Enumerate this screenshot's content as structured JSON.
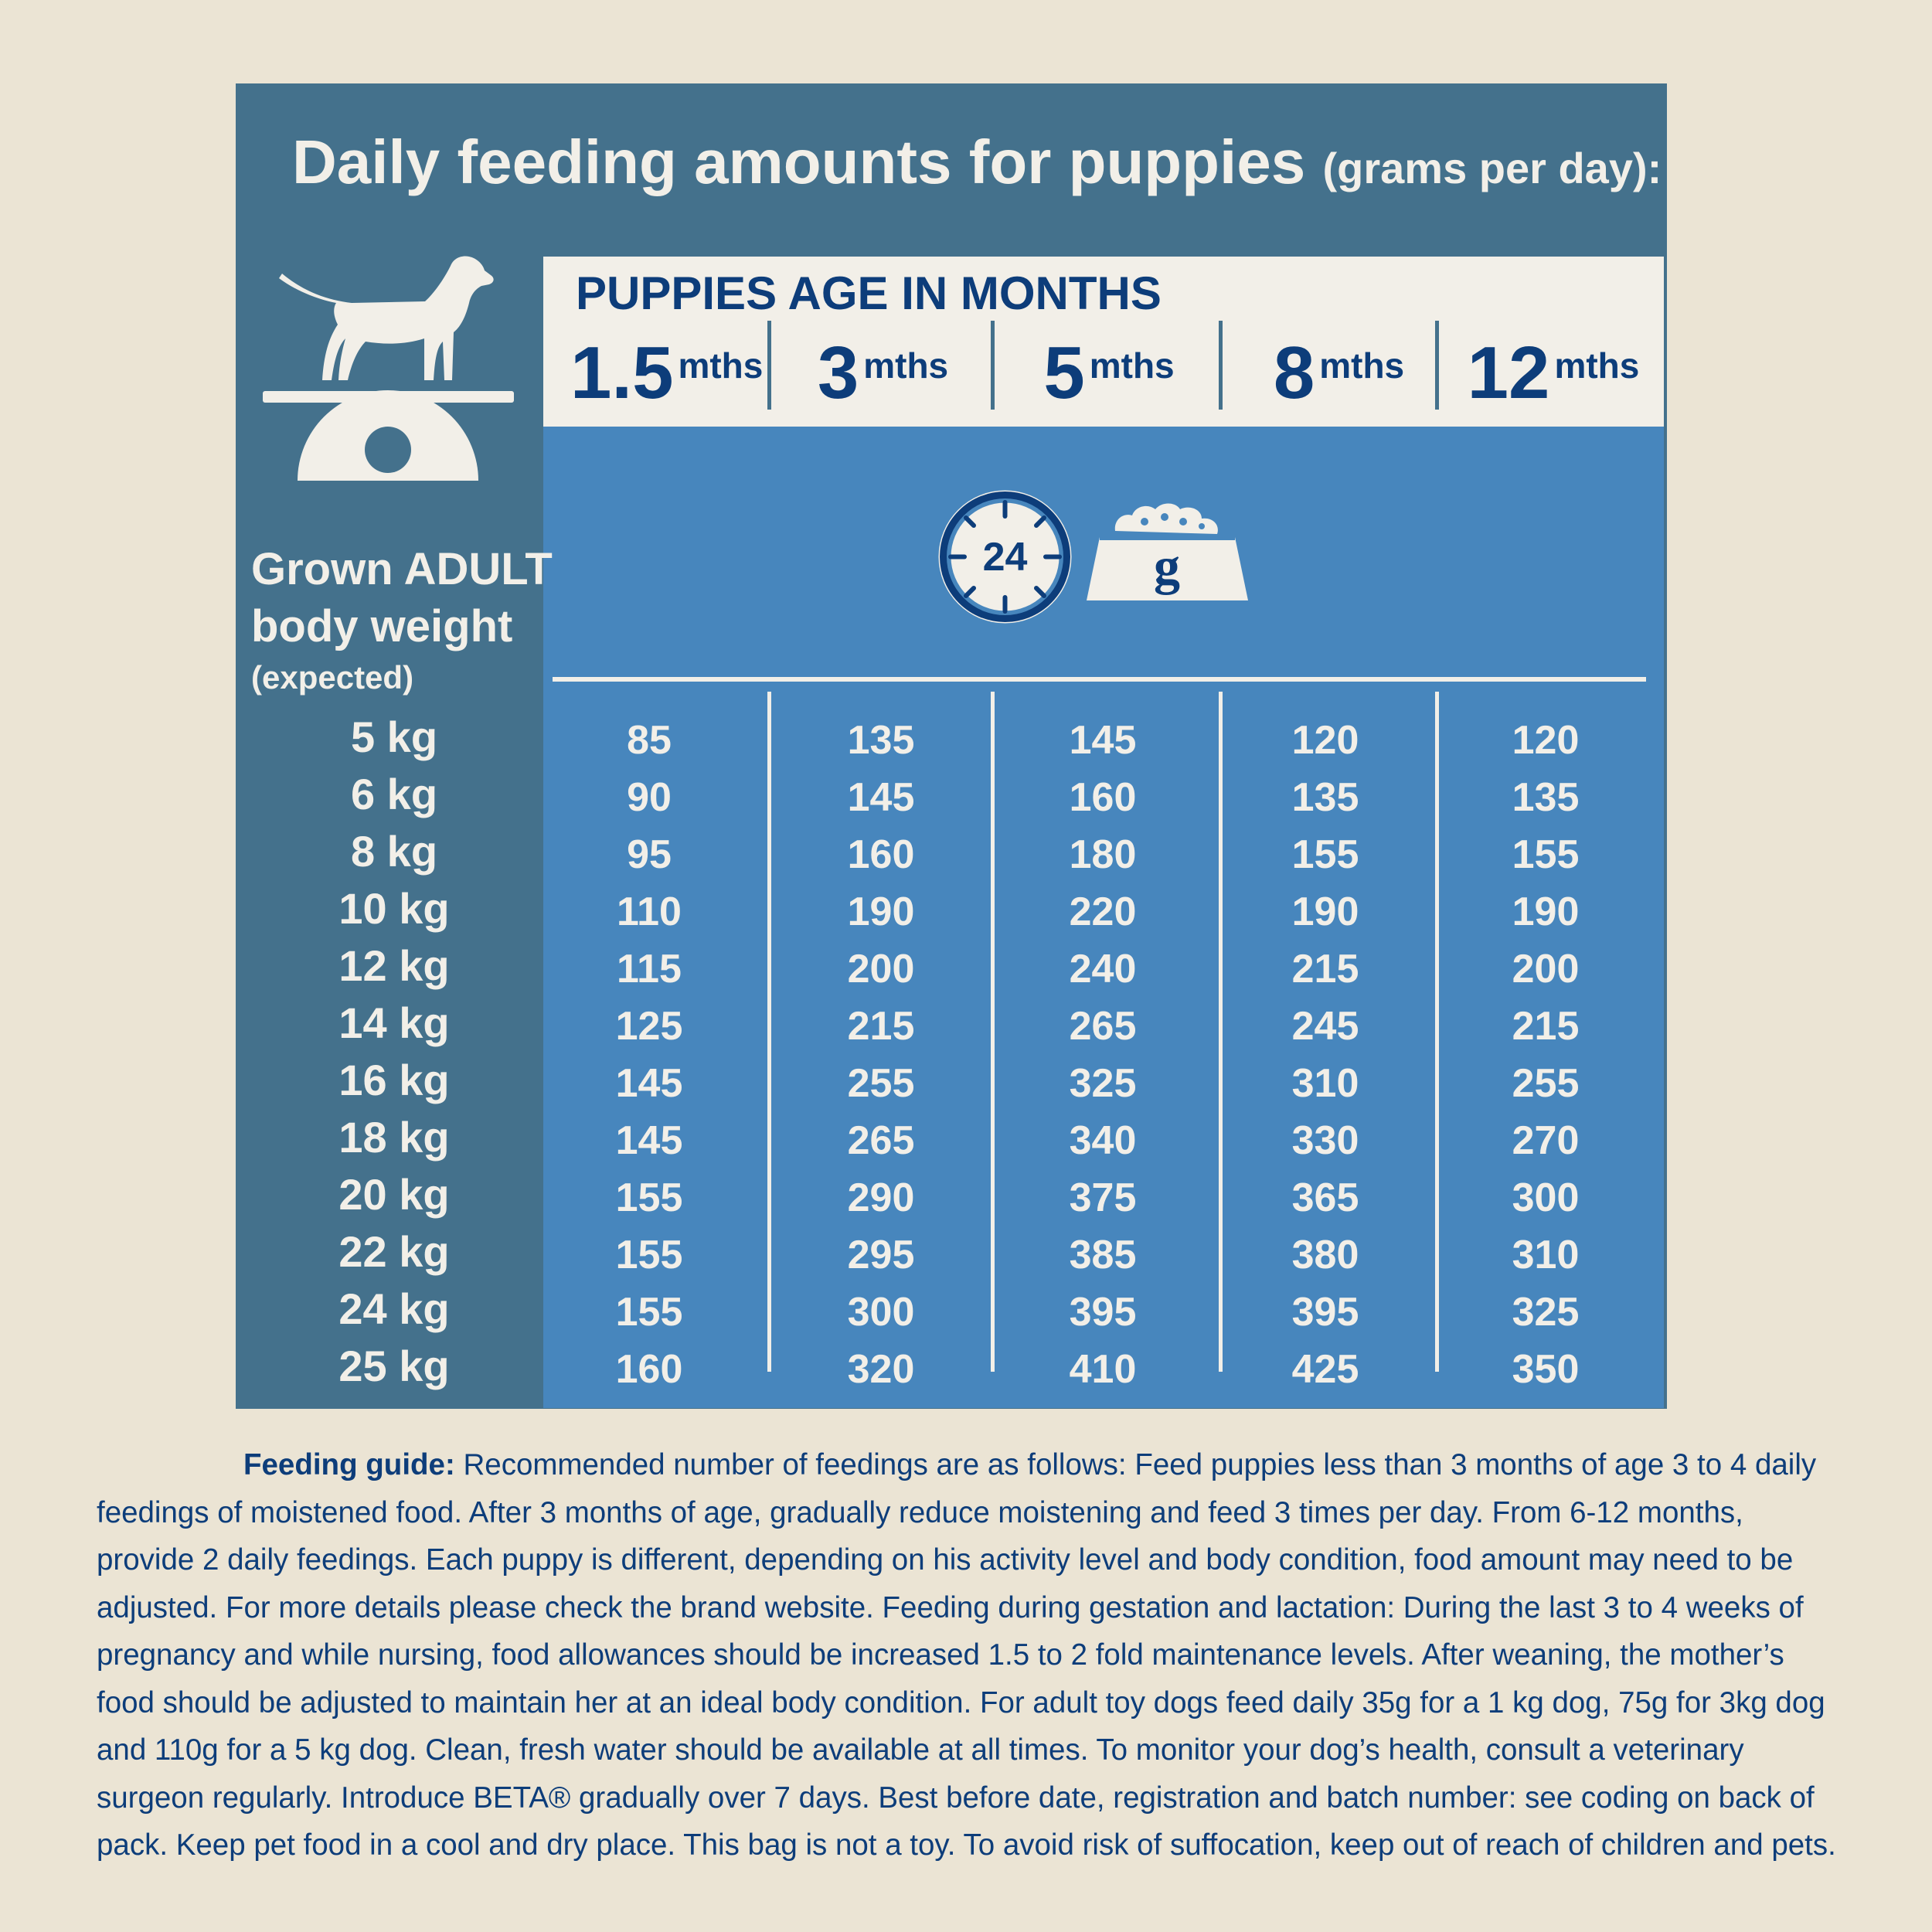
{
  "title": {
    "main": "Daily feeding amounts for puppies",
    "sub": "(grams per day):"
  },
  "header": {
    "age_label": "PUPPIES AGE IN MONTHS",
    "months": [
      {
        "num": "1.5",
        "unit": "mths"
      },
      {
        "num": "3",
        "unit": "mths"
      },
      {
        "num": "5",
        "unit": "mths"
      },
      {
        "num": "8",
        "unit": "mths"
      },
      {
        "num": "12",
        "unit": "mths"
      }
    ]
  },
  "weight_header": {
    "line1": "Grown ADULT",
    "line2": "body weight",
    "line3": "(expected)"
  },
  "icons": {
    "clock_label": "24",
    "bowl_label": "g"
  },
  "rows": [
    {
      "weight": "5 kg",
      "values": [
        "85",
        "135",
        "145",
        "120",
        "120"
      ]
    },
    {
      "weight": "6 kg",
      "values": [
        "90",
        "145",
        "160",
        "135",
        "135"
      ]
    },
    {
      "weight": "8 kg",
      "values": [
        "95",
        "160",
        "180",
        "155",
        "155"
      ]
    },
    {
      "weight": "10 kg",
      "values": [
        "110",
        "190",
        "220",
        "190",
        "190"
      ]
    },
    {
      "weight": "12 kg",
      "values": [
        "115",
        "200",
        "240",
        "215",
        "200"
      ]
    },
    {
      "weight": "14 kg",
      "values": [
        "125",
        "215",
        "265",
        "245",
        "215"
      ]
    },
    {
      "weight": "16 kg",
      "values": [
        "145",
        "255",
        "325",
        "310",
        "255"
      ]
    },
    {
      "weight": "18 kg",
      "values": [
        "145",
        "265",
        "340",
        "330",
        "270"
      ]
    },
    {
      "weight": "20 kg",
      "values": [
        "155",
        "290",
        "375",
        "365",
        "300"
      ]
    },
    {
      "weight": "22 kg",
      "values": [
        "155",
        "295",
        "385",
        "380",
        "310"
      ]
    },
    {
      "weight": "24 kg",
      "values": [
        "155",
        "300",
        "395",
        "395",
        "325"
      ]
    },
    {
      "weight": "25 kg",
      "values": [
        "160",
        "320",
        "410",
        "425",
        "350"
      ]
    }
  ],
  "note": {
    "lead": "Feeding guide:",
    "text": "Recommended number of feedings are as follows: Feed puppies less than 3 months of age 3 to 4 daily feedings of moistened food. After 3 months of age, gradually reduce moistening and feed 3 times per day. From 6-12 months, provide 2 daily feedings. Each puppy is different, depending on his activity level and body condition, food amount may need to be adjusted. For more details please check the brand website. Feeding during gestation and lactation: During the last 3 to 4 weeks of pregnancy and while nursing, food allowances should be increased 1.5 to 2 fold maintenance levels. After weaning, the mother’s food should be adjusted to maintain her at an ideal body condition. For adult toy dogs feed daily 35g for a 1 kg dog, 75g for 3kg dog and 110g for a 5 kg dog. Clean, fresh water should be available at all times. To monitor your dog’s health, consult a veterinary surgeon regularly. Introduce BETA® gradually over 7 days. Best before date, registration and batch number: see coding on back of pack. Keep pet food in a cool and dry place. This bag is not a toy. To avoid risk of suffocation, keep out of reach of children and pets."
  },
  "colors": {
    "background": "#ebe4d4",
    "panel_dark": "#44718c",
    "panel_light": "#4786bd",
    "cream": "#f2efe8",
    "navy": "#0d3d7a"
  }
}
